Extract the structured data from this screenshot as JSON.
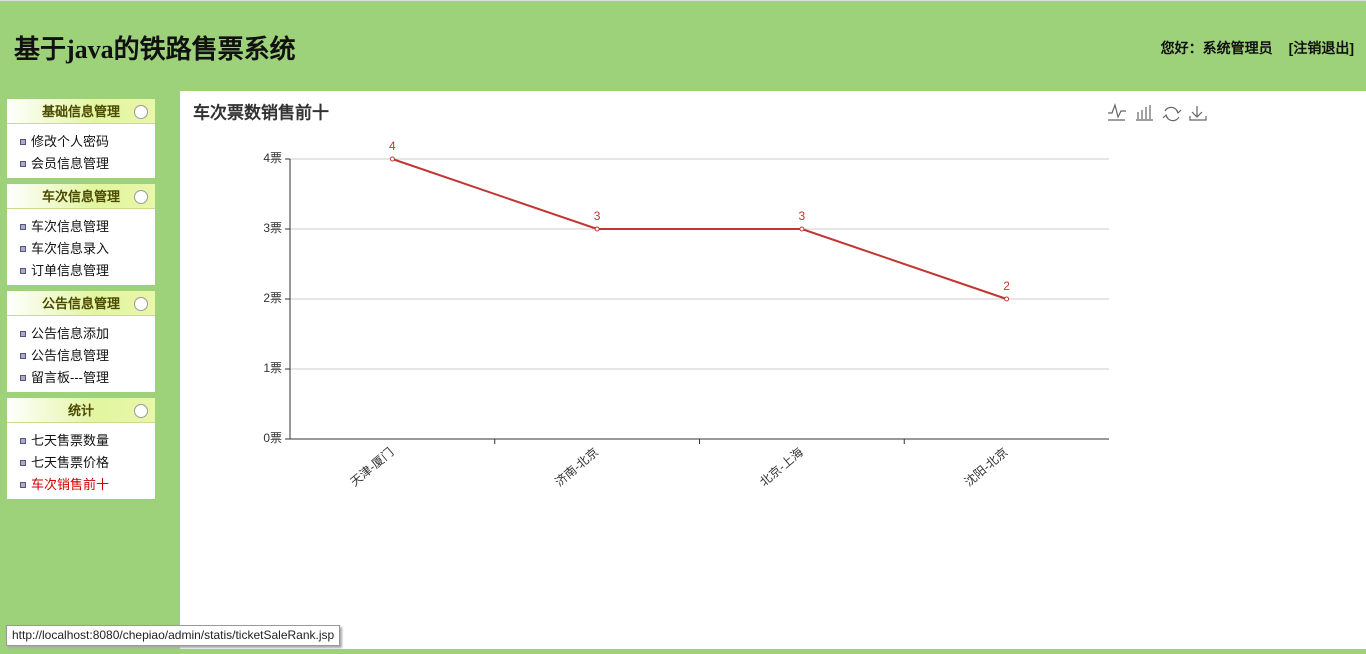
{
  "header": {
    "title": "基于java的铁路售票系统",
    "greeting": "您好：系统管理员",
    "logout": "[注销退出]"
  },
  "sidebar": {
    "groups": [
      {
        "title": "基础信息管理",
        "items": [
          "修改个人密码",
          "会员信息管理"
        ]
      },
      {
        "title": "车次信息管理",
        "items": [
          "车次信息管理",
          "车次信息录入",
          "订单信息管理"
        ]
      },
      {
        "title": "公告信息管理",
        "items": [
          "公告信息添加",
          "公告信息管理",
          "留言板---管理"
        ]
      },
      {
        "title": "统计",
        "items": [
          "七天售票数量",
          "七天售票价格",
          "车次销售前十"
        ]
      }
    ]
  },
  "chart_data": {
    "type": "line",
    "title": "车次票数销售前十",
    "categories": [
      "天津-厦门",
      "济南-北京",
      "北京-上海",
      "沈阳-北京"
    ],
    "values": [
      4,
      3,
      3,
      2
    ],
    "color": "#c23531",
    "ylim": [
      0,
      4
    ],
    "yticks": [
      {
        "value": 0,
        "label": "0票"
      },
      {
        "value": 1,
        "label": "1票"
      },
      {
        "value": 2,
        "label": "2票"
      },
      {
        "value": 3,
        "label": "3票"
      },
      {
        "value": 4,
        "label": "4票"
      }
    ],
    "grid": true
  },
  "status_bar": {
    "url": "http://localhost:8080/chepiao/admin/statis/ticketSaleRank.jsp"
  }
}
